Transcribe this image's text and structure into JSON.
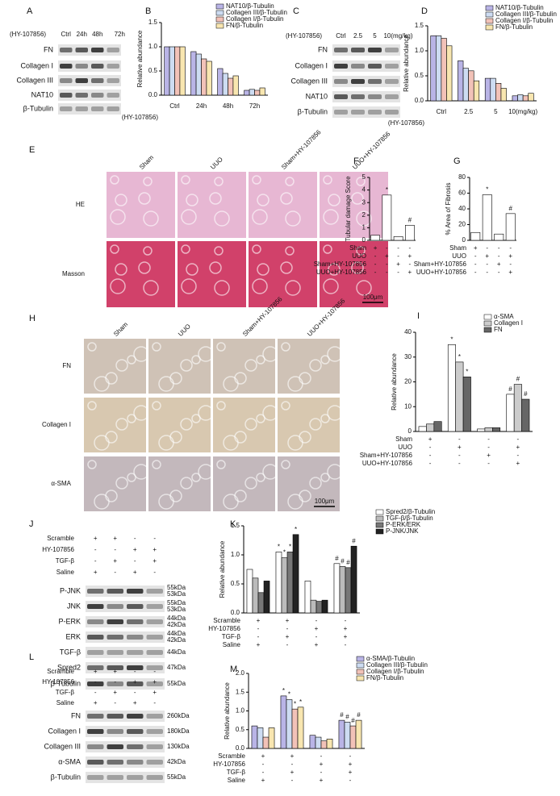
{
  "blots": [
    {
      "panel": "A",
      "header": "(HY-107856)",
      "lanes": [
        "Ctrl",
        "24h",
        "48h",
        "72h"
      ],
      "rows": [
        {
          "name": "FN"
        },
        {
          "name": "Collagen I"
        },
        {
          "name": "Collagen III"
        },
        {
          "name": "NAT10"
        },
        {
          "name": "β-Tubulin"
        }
      ]
    },
    {
      "panel": "C",
      "header": "(HY-107856)",
      "lanes": [
        "Ctrl",
        "2.5",
        "5",
        "10(mg/kg)"
      ],
      "rows": [
        {
          "name": "FN"
        },
        {
          "name": "Collagen I"
        },
        {
          "name": "Collagen III"
        },
        {
          "name": "NAT10"
        },
        {
          "name": "β-Tubulin"
        }
      ]
    },
    {
      "panel": "J",
      "conditions": [
        {
          "label": "Scramble",
          "marks": [
            "+",
            "+",
            "-",
            "-"
          ]
        },
        {
          "label": "HY-107856",
          "marks": [
            "-",
            "-",
            "+",
            "+"
          ]
        },
        {
          "label": "TGF-β",
          "marks": [
            "-",
            "+",
            "-",
            "+"
          ]
        },
        {
          "label": "Saline",
          "marks": [
            "+",
            "-",
            "+",
            "-"
          ]
        }
      ],
      "rows": [
        {
          "name": "P-JNK",
          "kda": [
            "55kDa",
            "53kDa"
          ]
        },
        {
          "name": "JNK",
          "kda": [
            "55kDa",
            "53kDa"
          ]
        },
        {
          "name": "P-ERK",
          "kda": [
            "44kDa",
            "42kDa"
          ]
        },
        {
          "name": "ERK",
          "kda": [
            "44kDa",
            "42kDa"
          ]
        },
        {
          "name": "TGF-β",
          "kda": [
            "44kDa"
          ]
        },
        {
          "name": "Spred2",
          "kda": [
            "47kDa"
          ]
        },
        {
          "name": "β-Tubulin",
          "kda": [
            "55kDa"
          ]
        }
      ]
    },
    {
      "panel": "L",
      "conditions": [
        {
          "label": "Scramble",
          "marks": [
            "+",
            "+",
            "-",
            "-"
          ]
        },
        {
          "label": "HY-107856",
          "marks": [
            "-",
            "-",
            "+",
            "+"
          ]
        },
        {
          "label": "TGF-β",
          "marks": [
            "-",
            "+",
            "-",
            "+"
          ]
        },
        {
          "label": "Saline",
          "marks": [
            "+",
            "-",
            "+",
            "-"
          ]
        }
      ],
      "rows": [
        {
          "name": "FN",
          "kda": [
            "260kDa"
          ]
        },
        {
          "name": "Collagen I",
          "kda": [
            "180kDa"
          ]
        },
        {
          "name": "Collagen III",
          "kda": [
            "130kDa"
          ]
        },
        {
          "name": "α-SMA",
          "kda": [
            "42kDa"
          ]
        },
        {
          "name": "β-Tubulin",
          "kda": [
            "55kDa"
          ]
        }
      ]
    }
  ],
  "histology": [
    {
      "panel": "E",
      "columns": [
        "Sham",
        "UUO",
        "Sham+HY-107856",
        "UUO+HY-107856"
      ],
      "rows": [
        "HE",
        "Masson"
      ],
      "scale": "100μm"
    },
    {
      "panel": "H",
      "columns": [
        "Sham",
        "UUO",
        "Sham+HY-107856",
        "UUO+HY-107856"
      ],
      "rows": [
        "FN",
        "Collagen I",
        "α-SMA"
      ],
      "scale": "100μm"
    }
  ],
  "chart_data": [
    {
      "type": "bar",
      "panel": "B",
      "ylabel": "Relative abundance",
      "xlabel": "(HY-107856)",
      "categories": [
        "Ctrl",
        "24h",
        "48h",
        "72h"
      ],
      "series": [
        {
          "name": "NAT10/β-Tubulin",
          "color": "#b9b4e6",
          "values": [
            1.0,
            0.9,
            0.55,
            0.1
          ]
        },
        {
          "name": "Collagen III/β-Tubulin",
          "color": "#cddcf2",
          "values": [
            1.0,
            0.85,
            0.45,
            0.12
          ]
        },
        {
          "name": "Collagen I/β-Tubulin",
          "color": "#f2c2b8",
          "values": [
            1.0,
            0.75,
            0.35,
            0.1
          ]
        },
        {
          "name": "FN/β-Tubulin",
          "color": "#f8e6b0",
          "values": [
            1.0,
            0.7,
            0.4,
            0.15
          ]
        }
      ],
      "ylim": [
        0,
        1.5
      ],
      "yticks": [
        {
          "value": 0,
          "label": "0.0"
        },
        {
          "value": 0.5,
          "label": "0.5"
        },
        {
          "value": 1,
          "label": "1.0"
        },
        {
          "value": 1.5,
          "label": "1.5"
        }
      ]
    },
    {
      "type": "bar",
      "panel": "D",
      "ylabel": "Relative abundance",
      "xlabel": "(HY-107856)",
      "categories": [
        "Ctrl",
        "2.5",
        "5",
        "10(mg/kg)"
      ],
      "series": [
        {
          "name": "NAT10/β-Tubulin",
          "color": "#b9b4e6",
          "values": [
            1.3,
            0.8,
            0.45,
            0.1
          ]
        },
        {
          "name": "Collagen III/β-Tubulin",
          "color": "#cddcf2",
          "values": [
            1.3,
            0.65,
            0.45,
            0.12
          ]
        },
        {
          "name": "Collagen I/β-Tubulin",
          "color": "#f2c2b8",
          "values": [
            1.25,
            0.6,
            0.35,
            0.1
          ]
        },
        {
          "name": "FN/β-Tubulin",
          "color": "#f8e6b0",
          "values": [
            1.1,
            0.4,
            0.25,
            0.15
          ]
        }
      ],
      "ylim": [
        0,
        1.5
      ],
      "yticks": [
        {
          "value": 0,
          "label": "0.0"
        },
        {
          "value": 0.5,
          "label": "0.5"
        },
        {
          "value": 1,
          "label": "1.0"
        },
        {
          "value": 1.5,
          "label": "1.5"
        }
      ]
    },
    {
      "type": "bar",
      "panel": "F",
      "ylabel": "Tubular damage Score",
      "conditions": [
        {
          "label": "Sham",
          "marks": [
            "+",
            "-",
            "-",
            "-"
          ]
        },
        {
          "label": "UUO",
          "marks": [
            "-",
            "+",
            "-",
            "+"
          ]
        },
        {
          "label": "Sham+HY-107856",
          "marks": [
            "-",
            "-",
            "+",
            "-"
          ]
        },
        {
          "label": "UUO+HY-107856",
          "marks": [
            "-",
            "-",
            "-",
            "+"
          ]
        }
      ],
      "values": [
        0.4,
        3.6,
        0.3,
        1.2
      ],
      "annotations": [
        null,
        "*",
        null,
        "#"
      ],
      "color": "#ffffff",
      "ylim": [
        0,
        5
      ],
      "yticks": [
        0,
        1,
        2,
        3,
        4,
        5
      ]
    },
    {
      "type": "bar",
      "panel": "G",
      "ylabel": "% Area of Fibrosis",
      "conditions": [
        {
          "label": "Sham",
          "marks": [
            "+",
            "-",
            "-",
            "-"
          ]
        },
        {
          "label": "UUO",
          "marks": [
            "-",
            "+",
            "-",
            "+"
          ]
        },
        {
          "label": "Sham+HY-107856",
          "marks": [
            "-",
            "-",
            "+",
            "-"
          ]
        },
        {
          "label": "UUO+HY-107856",
          "marks": [
            "-",
            "-",
            "-",
            "+"
          ]
        }
      ],
      "values": [
        10,
        58,
        8,
        34
      ],
      "annotations": [
        null,
        "*",
        null,
        "#"
      ],
      "color": "#ffffff",
      "ylim": [
        0,
        80
      ],
      "yticks": [
        0,
        20,
        40,
        60,
        80
      ]
    },
    {
      "type": "bar",
      "panel": "I",
      "ylabel": "Relative abundance",
      "conditions": [
        {
          "label": "Sham",
          "marks": [
            "+",
            "-",
            "-",
            "-"
          ]
        },
        {
          "label": "UUO",
          "marks": [
            "-",
            "+",
            "-",
            "+"
          ]
        },
        {
          "label": "Sham+HY-107856",
          "marks": [
            "-",
            "-",
            "+",
            "-"
          ]
        },
        {
          "label": "UUO+HY-107856",
          "marks": [
            "-",
            "-",
            "-",
            "+"
          ]
        }
      ],
      "series": [
        {
          "name": "α-SMA",
          "color": "#ffffff",
          "values": [
            2,
            35,
            1,
            15
          ],
          "annotations": [
            null,
            "*",
            null,
            "#"
          ]
        },
        {
          "name": "Collagen I",
          "color": "#cccccc",
          "values": [
            3,
            28,
            1.5,
            19
          ],
          "annotations": [
            null,
            "*",
            null,
            "#"
          ]
        },
        {
          "name": "FN",
          "color": "#666666",
          "values": [
            4,
            22,
            1.5,
            13
          ],
          "annotations": [
            null,
            "*",
            null,
            "#"
          ]
        }
      ],
      "ylim": [
        0,
        40
      ],
      "yticks": [
        0,
        10,
        20,
        30,
        40
      ]
    },
    {
      "type": "bar",
      "panel": "K",
      "ylabel": "Relative abundance",
      "conditions": [
        {
          "label": "Scramble",
          "marks": [
            "+",
            "+",
            "-",
            "-"
          ]
        },
        {
          "label": "HY-107856",
          "marks": [
            "-",
            "-",
            "+",
            "+"
          ]
        },
        {
          "label": "TGF-β",
          "marks": [
            "-",
            "+",
            "-",
            "+"
          ]
        },
        {
          "label": "Saline",
          "marks": [
            "+",
            "-",
            "+",
            "-"
          ]
        }
      ],
      "series": [
        {
          "name": "Spred2/β-Tubulin",
          "color": "#ffffff",
          "values": [
            0.75,
            1.05,
            0.55,
            0.85
          ],
          "annotations": [
            null,
            "*",
            null,
            "#"
          ]
        },
        {
          "name": "TGF-β/β-Tubulin",
          "color": "#bbbbbb",
          "values": [
            0.6,
            0.95,
            0.22,
            0.8
          ],
          "annotations": [
            null,
            "*",
            null,
            "#"
          ]
        },
        {
          "name": "P-ERK/ERK",
          "color": "#777777",
          "values": [
            0.35,
            1.05,
            0.2,
            0.78
          ],
          "annotations": [
            null,
            "*",
            null,
            "#"
          ]
        },
        {
          "name": "P-JNK/JNK",
          "color": "#222222",
          "values": [
            0.55,
            1.35,
            0.22,
            1.15
          ],
          "annotations": [
            null,
            "*",
            null,
            "#"
          ]
        }
      ],
      "ylim": [
        0,
        1.5
      ],
      "yticks": [
        {
          "value": 0,
          "label": "0.0"
        },
        {
          "value": 0.5,
          "label": "0.5"
        },
        {
          "value": 1,
          "label": "1.0"
        },
        {
          "value": 1.5,
          "label": "1.5"
        }
      ]
    },
    {
      "type": "bar",
      "panel": "M",
      "ylabel": "Relative abundance",
      "conditions": [
        {
          "label": "Scramble",
          "marks": [
            "+",
            "+",
            "-",
            "-"
          ]
        },
        {
          "label": "HY-107856",
          "marks": [
            "-",
            "-",
            "+",
            "+"
          ]
        },
        {
          "label": "TGF-β",
          "marks": [
            "-",
            "+",
            "-",
            "+"
          ]
        },
        {
          "label": "Saline",
          "marks": [
            "+",
            "-",
            "+",
            "-"
          ]
        }
      ],
      "series": [
        {
          "name": "α-SMA/β-Tubulin",
          "color": "#b9b4e6",
          "values": [
            0.6,
            1.4,
            0.35,
            0.75
          ],
          "annotations": [
            null,
            "*",
            null,
            "#"
          ]
        },
        {
          "name": "Collagen III/β-Tubulin",
          "color": "#cddcf2",
          "values": [
            0.55,
            1.3,
            0.3,
            0.7
          ],
          "annotations": [
            null,
            "*",
            null,
            "#"
          ]
        },
        {
          "name": "Collagen I/β-Tubulin",
          "color": "#f2c2b8",
          "values": [
            0.3,
            1.05,
            0.2,
            0.6
          ],
          "annotations": [
            null,
            "*",
            null,
            "#"
          ]
        },
        {
          "name": "FN/β-Tubulin",
          "color": "#f8e6b0",
          "values": [
            0.55,
            1.1,
            0.25,
            0.75
          ],
          "annotations": [
            null,
            "*",
            null,
            "#"
          ]
        }
      ],
      "ylim": [
        0,
        2
      ],
      "yticks": [
        {
          "value": 0,
          "label": "0.0"
        },
        {
          "value": 0.5,
          "label": "0.5"
        },
        {
          "value": 1,
          "label": "1.0"
        },
        {
          "value": 1.5,
          "label": "1.5"
        },
        {
          "value": 2,
          "label": "2.0"
        }
      ]
    }
  ]
}
